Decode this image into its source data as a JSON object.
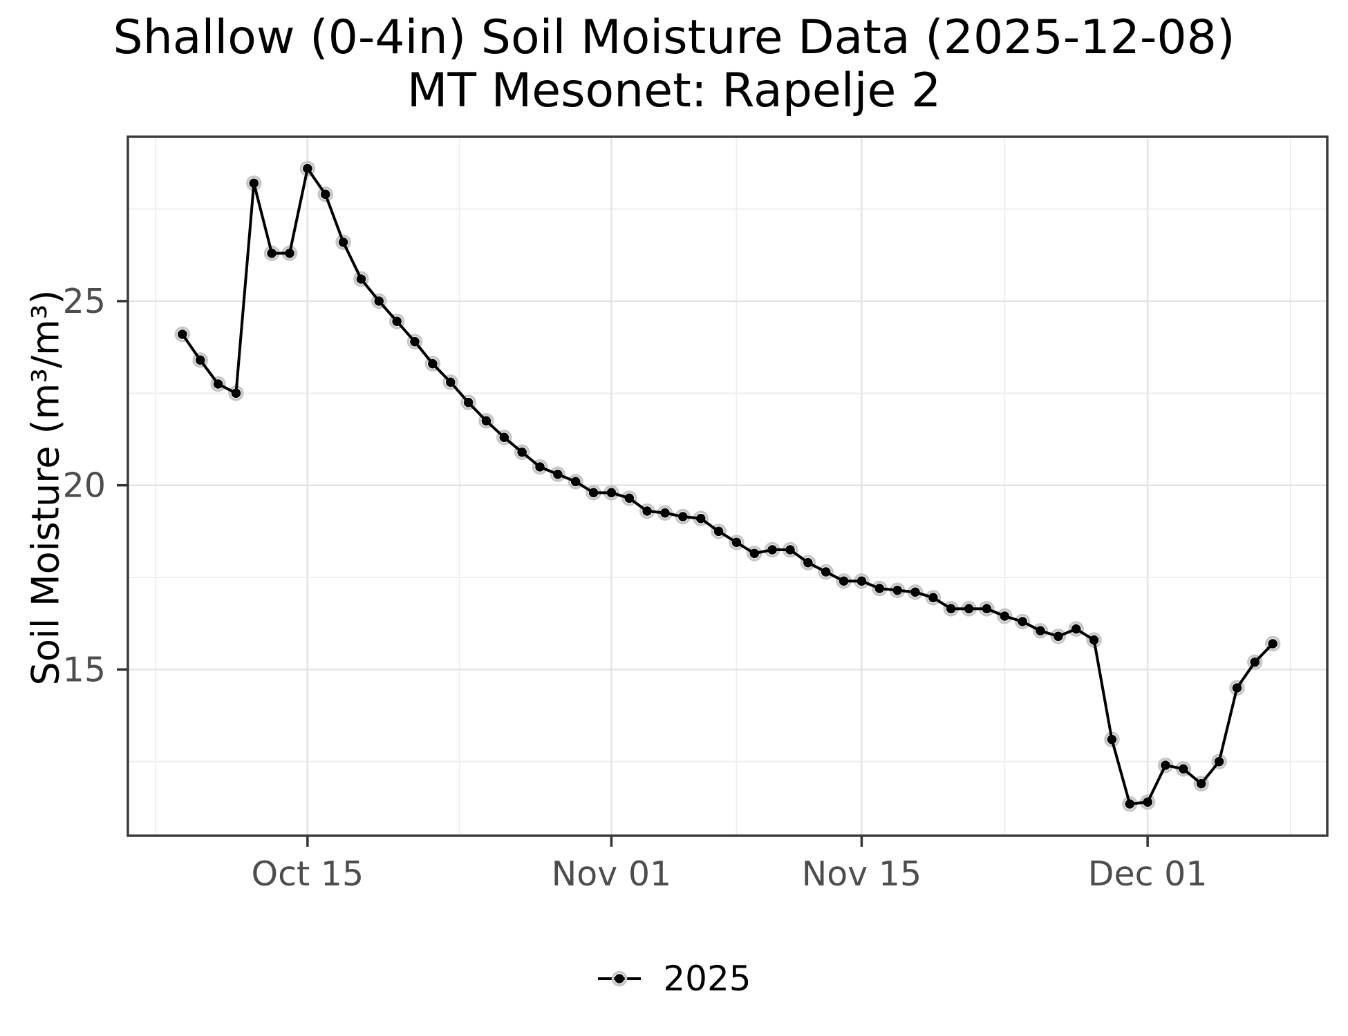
{
  "chart_data": {
    "type": "line",
    "title": "Shallow (0-4in) Soil Moisture Data (2025-12-08)",
    "subtitle": "MT Mesonet: Rapelje 2",
    "xlabel": "",
    "ylabel": "Soil Moisture (m³/m³)",
    "legend": {
      "label": "2025",
      "position": "bottom"
    },
    "grid": "on",
    "series": [
      {
        "name": "2025",
        "dates": [
          "2025-10-08",
          "2025-10-09",
          "2025-10-10",
          "2025-10-11",
          "2025-10-12",
          "2025-10-13",
          "2025-10-14",
          "2025-10-15",
          "2025-10-16",
          "2025-10-17",
          "2025-10-18",
          "2025-10-19",
          "2025-10-20",
          "2025-10-21",
          "2025-10-22",
          "2025-10-23",
          "2025-10-24",
          "2025-10-25",
          "2025-10-26",
          "2025-10-27",
          "2025-10-28",
          "2025-10-29",
          "2025-10-30",
          "2025-10-31",
          "2025-11-01",
          "2025-11-02",
          "2025-11-03",
          "2025-11-04",
          "2025-11-05",
          "2025-11-06",
          "2025-11-07",
          "2025-11-08",
          "2025-11-09",
          "2025-11-10",
          "2025-11-11",
          "2025-11-12",
          "2025-11-13",
          "2025-11-14",
          "2025-11-15",
          "2025-11-16",
          "2025-11-17",
          "2025-11-18",
          "2025-11-19",
          "2025-11-20",
          "2025-11-21",
          "2025-11-22",
          "2025-11-23",
          "2025-11-24",
          "2025-11-25",
          "2025-11-26",
          "2025-11-27",
          "2025-11-28",
          "2025-11-29",
          "2025-11-30",
          "2025-12-01",
          "2025-12-02",
          "2025-12-03",
          "2025-12-04",
          "2025-12-05",
          "2025-12-06",
          "2025-12-07",
          "2025-12-08"
        ],
        "values": [
          24.1,
          23.4,
          22.75,
          22.5,
          28.2,
          26.3,
          26.3,
          28.6,
          27.9,
          26.6,
          25.6,
          25.0,
          24.45,
          23.9,
          23.3,
          22.8,
          22.25,
          21.75,
          21.3,
          20.9,
          20.5,
          20.3,
          20.1,
          19.8,
          19.8,
          19.65,
          19.3,
          19.25,
          19.15,
          19.1,
          18.75,
          18.45,
          18.15,
          18.25,
          18.25,
          17.9,
          17.65,
          17.4,
          17.4,
          17.2,
          17.15,
          17.1,
          16.95,
          16.65,
          16.65,
          16.65,
          16.45,
          16.3,
          16.05,
          15.9,
          16.1,
          15.8,
          13.1,
          11.35,
          11.4,
          12.4,
          12.3,
          11.9,
          12.5,
          14.5,
          15.2,
          15.7
        ]
      }
    ],
    "x_axis": {
      "tick_labels": [
        "Oct 15",
        "Nov 01",
        "Nov 15",
        "Dec 01"
      ],
      "tick_dates": [
        "2025-10-15",
        "2025-11-01",
        "2025-11-15",
        "2025-12-01"
      ],
      "minor_dates": [
        "2025-10-06T12:00:00",
        "2025-10-23T12:00:00",
        "2025-11-08T00:00:00",
        "2025-11-23T00:00:00",
        "2025-12-09T00:00:00"
      ],
      "expansion": 0.05
    },
    "y_axis": {
      "tick_values": [
        15,
        20,
        25
      ],
      "tick_labels": [
        "15",
        "20",
        "25"
      ],
      "minor_values": [
        12.5,
        17.5,
        22.5,
        27.5
      ],
      "expansion": 0.05
    },
    "style": {
      "line_color": "#000000",
      "point_color": "#000000",
      "point_halo_color": "#c6c6c6",
      "grid_major_color": "#e4e4e4",
      "grid_minor_color": "#efefef",
      "panel_border_color": "#3b3b3b",
      "tick_mark_color": "#333333",
      "tick_label_color": "#4d4d4d",
      "title_color": "#000000",
      "background_color": "#ffffff"
    }
  }
}
